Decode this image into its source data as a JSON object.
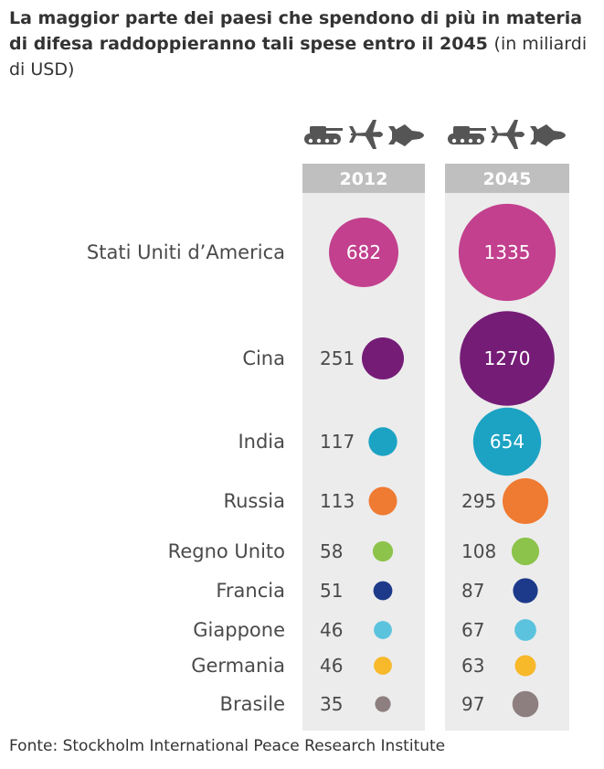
{
  "title_bold": "La maggior parte dei paesi che spendono di più in materia di difesa raddoppieranno tali spese entro il 2045",
  "title_unit": "(in miliardi di USD)",
  "source": "Fonte: Stockholm International Peace Research Institute",
  "icons": [
    "tank-icon",
    "airplane-icon",
    "fighter-jet-icon"
  ],
  "chart_data": {
    "type": "bubble",
    "title": "La maggior parte dei paesi che spendono di più in materia di difesa raddoppieranno tali spese entro il 2045",
    "unit": "(in miliardi di USD)",
    "columns": [
      "2012",
      "2045"
    ],
    "categories": [
      "Stati Uniti d’America",
      "Cina",
      "India",
      "Russia",
      "Regno Unito",
      "Francia",
      "Giappone",
      "Germania",
      "Brasile"
    ],
    "series": [
      {
        "name": "2012",
        "values": [
          682,
          251,
          117,
          113,
          58,
          51,
          46,
          46,
          35
        ]
      },
      {
        "name": "2045",
        "values": [
          1335,
          1270,
          654,
          295,
          108,
          87,
          67,
          63,
          97
        ]
      }
    ],
    "colors": [
      "#c2408e",
      "#751c77",
      "#1ca3c4",
      "#ef7a32",
      "#8cc34a",
      "#1d3a8a",
      "#5cc3de",
      "#f7b82a",
      "#8d7f80"
    ]
  }
}
